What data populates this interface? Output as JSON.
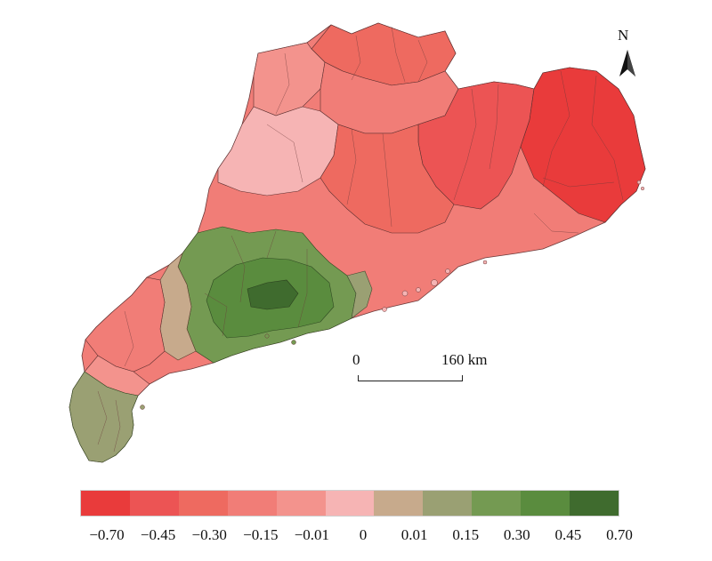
{
  "north_label": "N",
  "scale_bar": {
    "start_label": "0",
    "end_label": "160 km"
  },
  "legend": {
    "colors": [
      "#e93b3b",
      "#ec5454",
      "#ee6a60",
      "#f17d77",
      "#f3938d",
      "#f6b4b4",
      "#c7aa8c",
      "#9aa073",
      "#749a52",
      "#5a8c3e",
      "#3f6b2e"
    ],
    "tick_labels": [
      "−0.70",
      "−0.45",
      "−0.30",
      "−0.15",
      "−0.01",
      "0",
      "0.01",
      "0.15",
      "0.30",
      "0.45",
      "0.70"
    ]
  },
  "regions": [
    {
      "class": 2,
      "value": -0.45
    },
    {
      "class": 4,
      "value": -0.05
    },
    {
      "class": 3,
      "value": -0.2
    },
    {
      "class": 1,
      "value": -0.55
    },
    {
      "class": 0,
      "value": -0.65
    },
    {
      "class": 3,
      "value": -0.25
    },
    {
      "class": 5,
      "value": -0.005
    },
    {
      "class": 2,
      "value": -0.35
    },
    {
      "class": 8,
      "value": 0.25
    },
    {
      "class": 9,
      "value": 0.4
    },
    {
      "class": 10,
      "value": 0.6
    },
    {
      "class": 7,
      "value": 0.1
    },
    {
      "class": 6,
      "value": 0.005
    },
    {
      "class": 3,
      "value": -0.18
    },
    {
      "class": 4,
      "value": -0.1
    },
    {
      "class": 7,
      "value": 0.12
    }
  ]
}
